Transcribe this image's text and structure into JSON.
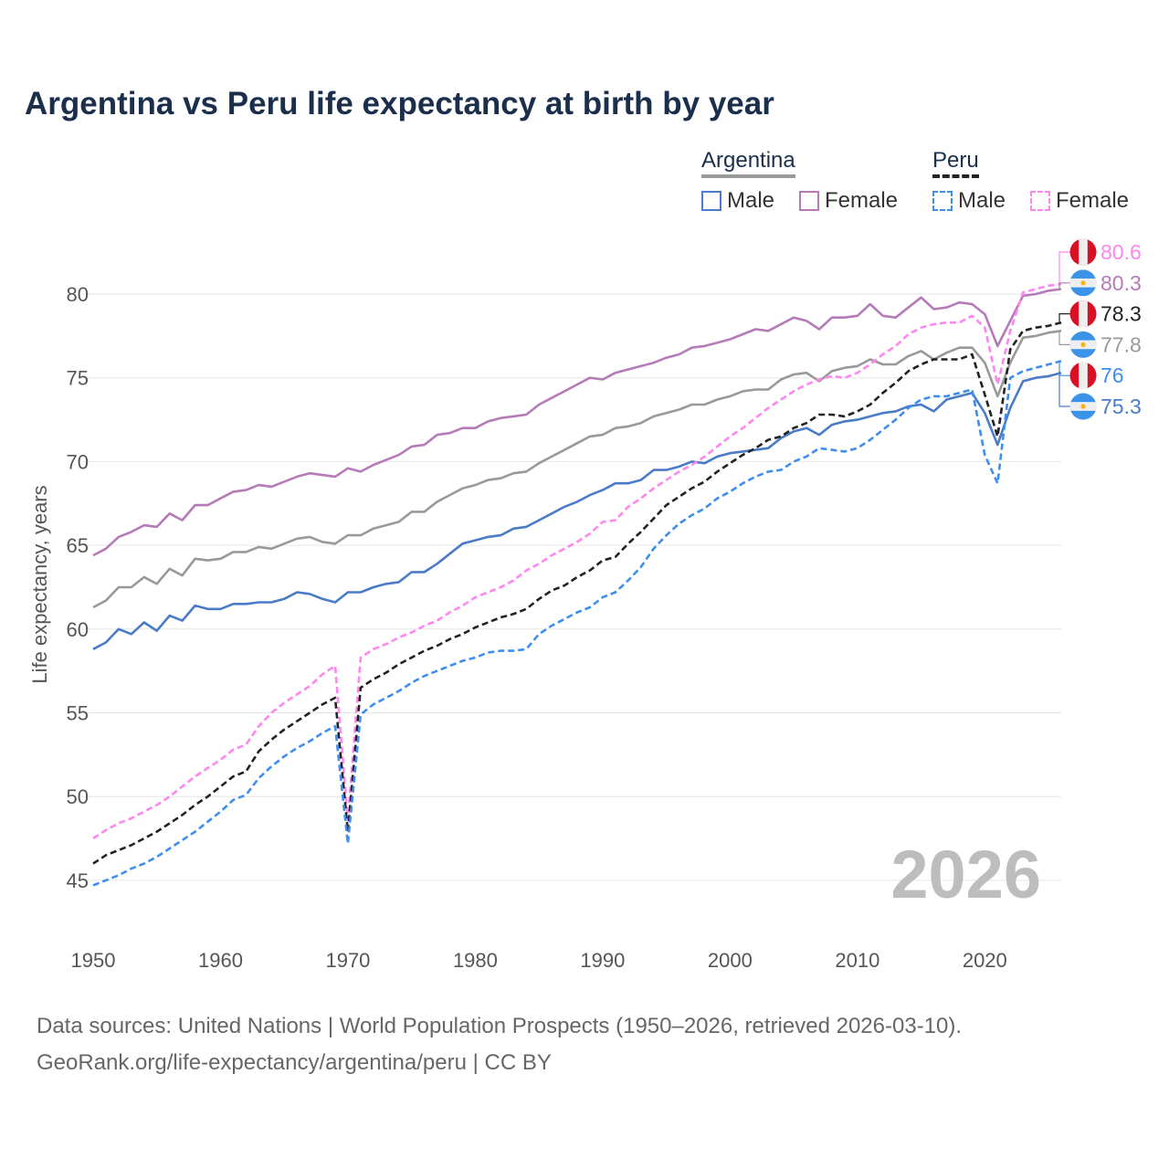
{
  "title": "Argentina vs Peru life expectancy at birth by year",
  "legend": {
    "groups": [
      {
        "country": "Argentina",
        "style": "solid",
        "color": "#999999",
        "items": [
          {
            "label": "Male",
            "color": "#4a7bc8"
          },
          {
            "label": "Female",
            "color": "#b57ab8"
          }
        ]
      },
      {
        "country": "Peru",
        "style": "dashed",
        "color": "#222222",
        "items": [
          {
            "label": "Male",
            "color": "#3d8ef0"
          },
          {
            "label": "Female",
            "color": "#ff85f0"
          }
        ]
      }
    ]
  },
  "year_watermark": "2026",
  "footer": {
    "line1": "Data sources: United Nations | World Population Prospects (1950–2026, retrieved 2026-03-10).",
    "line2": "GeoRank.org/life-expectancy/argentina/peru | CC BY"
  },
  "chart_data": {
    "type": "line",
    "title": "Argentina vs Peru life expectancy at birth by year",
    "xlabel": "",
    "ylabel": "Life expectancy, years",
    "xlim": [
      1950,
      2026
    ],
    "ylim": [
      43,
      83
    ],
    "xticks": [
      1950,
      1960,
      1970,
      1980,
      1990,
      2000,
      2010,
      2020
    ],
    "yticks": [
      45,
      50,
      55,
      60,
      65,
      70,
      75,
      80
    ],
    "grid": true,
    "legend_position": "top-right",
    "x_start": 1950,
    "series": [
      {
        "name": "Peru Female",
        "country": "Peru",
        "flag": "peru",
        "dashed": true,
        "color": "#ff85f0",
        "end_label": "80.6",
        "values": [
          47.5,
          48.0,
          48.4,
          48.7,
          49.1,
          49.5,
          50.0,
          50.6,
          51.2,
          51.7,
          52.2,
          52.8,
          53.1,
          54.2,
          55.0,
          55.6,
          56.1,
          56.6,
          57.3,
          57.8,
          48.6,
          58.3,
          58.8,
          59.1,
          59.5,
          59.8,
          60.2,
          60.5,
          61.0,
          61.4,
          61.9,
          62.2,
          62.5,
          62.9,
          63.5,
          63.9,
          64.4,
          64.8,
          65.2,
          65.7,
          66.4,
          66.5,
          67.3,
          67.8,
          68.4,
          68.9,
          69.4,
          69.8,
          70.3,
          70.9,
          71.5,
          72.0,
          72.6,
          73.2,
          73.7,
          74.2,
          74.6,
          74.9,
          75.1,
          75.0,
          75.3,
          75.8,
          76.4,
          76.9,
          77.6,
          78.0,
          78.2,
          78.3,
          78.3,
          78.7,
          78.0,
          74.6,
          77.8,
          80.1,
          80.3,
          80.5,
          80.6
        ]
      },
      {
        "name": "Argentina Female",
        "country": "Argentina",
        "flag": "argentina",
        "dashed": false,
        "color": "#b57ab8",
        "end_label": "80.3",
        "values": [
          64.4,
          64.8,
          65.5,
          65.8,
          66.2,
          66.1,
          66.9,
          66.5,
          67.4,
          67.4,
          67.8,
          68.2,
          68.3,
          68.6,
          68.5,
          68.8,
          69.1,
          69.3,
          69.2,
          69.1,
          69.6,
          69.4,
          69.8,
          70.1,
          70.4,
          70.9,
          71.0,
          71.6,
          71.7,
          72.0,
          72.0,
          72.4,
          72.6,
          72.7,
          72.8,
          73.4,
          73.8,
          74.2,
          74.6,
          75.0,
          74.9,
          75.3,
          75.5,
          75.7,
          75.9,
          76.2,
          76.4,
          76.8,
          76.9,
          77.1,
          77.3,
          77.6,
          77.9,
          77.8,
          78.2,
          78.6,
          78.4,
          77.9,
          78.6,
          78.6,
          78.7,
          79.4,
          78.7,
          78.6,
          79.2,
          79.8,
          79.1,
          79.2,
          79.5,
          79.4,
          78.8,
          76.9,
          78.4,
          79.9,
          80.0,
          80.2,
          80.3
        ]
      },
      {
        "name": "Peru",
        "country": "Peru",
        "flag": "peru",
        "dashed": true,
        "color": "#222222",
        "end_label": "78.3",
        "values": [
          46.0,
          46.5,
          46.8,
          47.1,
          47.5,
          47.9,
          48.4,
          48.9,
          49.5,
          50.0,
          50.6,
          51.2,
          51.5,
          52.7,
          53.4,
          54.0,
          54.5,
          55.0,
          55.5,
          55.9,
          47.9,
          56.5,
          57.0,
          57.4,
          57.9,
          58.3,
          58.7,
          59.0,
          59.4,
          59.7,
          60.1,
          60.4,
          60.7,
          60.9,
          61.2,
          61.8,
          62.3,
          62.6,
          63.1,
          63.5,
          64.1,
          64.3,
          65.1,
          65.8,
          66.6,
          67.4,
          67.9,
          68.4,
          68.8,
          69.4,
          69.9,
          70.4,
          70.8,
          71.3,
          71.5,
          72.0,
          72.3,
          72.8,
          72.8,
          72.7,
          73.0,
          73.4,
          74.1,
          74.7,
          75.4,
          75.8,
          76.1,
          76.1,
          76.1,
          76.4,
          74.0,
          71.5,
          76.7,
          77.8,
          78.0,
          78.1,
          78.3
        ]
      },
      {
        "name": "Argentina",
        "country": "Argentina",
        "flag": "argentina",
        "dashed": false,
        "color": "#999999",
        "end_label": "77.8",
        "values": [
          61.3,
          61.7,
          62.5,
          62.5,
          63.1,
          62.7,
          63.6,
          63.2,
          64.2,
          64.1,
          64.2,
          64.6,
          64.6,
          64.9,
          64.8,
          65.1,
          65.4,
          65.5,
          65.2,
          65.1,
          65.6,
          65.6,
          66.0,
          66.2,
          66.4,
          67.0,
          67.0,
          67.6,
          68.0,
          68.4,
          68.6,
          68.9,
          69.0,
          69.3,
          69.4,
          69.9,
          70.3,
          70.7,
          71.1,
          71.5,
          71.6,
          72.0,
          72.1,
          72.3,
          72.7,
          72.9,
          73.1,
          73.4,
          73.4,
          73.7,
          73.9,
          74.2,
          74.3,
          74.3,
          74.9,
          75.2,
          75.3,
          74.8,
          75.4,
          75.6,
          75.7,
          76.1,
          75.8,
          75.8,
          76.3,
          76.6,
          76.1,
          76.5,
          76.8,
          76.8,
          75.9,
          73.9,
          75.9,
          77.4,
          77.5,
          77.7,
          77.8
        ]
      },
      {
        "name": "Peru Male",
        "country": "Peru",
        "flag": "peru",
        "dashed": true,
        "color": "#3d8ef0",
        "end_label": "76",
        "values": [
          44.7,
          45.0,
          45.3,
          45.7,
          46.0,
          46.4,
          46.9,
          47.4,
          47.9,
          48.5,
          49.1,
          49.8,
          50.1,
          51.1,
          51.8,
          52.4,
          52.9,
          53.3,
          53.8,
          54.2,
          47.2,
          54.9,
          55.5,
          55.9,
          56.3,
          56.8,
          57.2,
          57.5,
          57.8,
          58.1,
          58.3,
          58.6,
          58.7,
          58.7,
          58.8,
          59.7,
          60.2,
          60.6,
          61.0,
          61.3,
          61.9,
          62.2,
          62.9,
          63.7,
          64.8,
          65.6,
          66.3,
          66.8,
          67.2,
          67.8,
          68.2,
          68.7,
          69.1,
          69.4,
          69.5,
          70.0,
          70.3,
          70.8,
          70.7,
          70.6,
          70.8,
          71.3,
          71.9,
          72.5,
          73.2,
          73.7,
          73.9,
          73.9,
          74.1,
          74.3,
          70.4,
          68.7,
          75.0,
          75.4,
          75.6,
          75.8,
          76.0
        ]
      },
      {
        "name": "Argentina Male",
        "country": "Argentina",
        "flag": "argentina",
        "dashed": false,
        "color": "#4a7bc8",
        "end_label": "75.3",
        "values": [
          58.8,
          59.2,
          60.0,
          59.7,
          60.4,
          59.9,
          60.8,
          60.5,
          61.4,
          61.2,
          61.2,
          61.5,
          61.5,
          61.6,
          61.6,
          61.8,
          62.2,
          62.1,
          61.8,
          61.6,
          62.2,
          62.2,
          62.5,
          62.7,
          62.8,
          63.4,
          63.4,
          63.9,
          64.5,
          65.1,
          65.3,
          65.5,
          65.6,
          66.0,
          66.1,
          66.5,
          66.9,
          67.3,
          67.6,
          68.0,
          68.3,
          68.7,
          68.7,
          68.9,
          69.5,
          69.5,
          69.7,
          70.0,
          69.9,
          70.3,
          70.5,
          70.6,
          70.7,
          70.8,
          71.4,
          71.8,
          72.0,
          71.6,
          72.2,
          72.4,
          72.5,
          72.7,
          72.9,
          73.0,
          73.3,
          73.4,
          73.0,
          73.7,
          73.9,
          74.1,
          72.9,
          71.0,
          73.2,
          74.8,
          75.0,
          75.1,
          75.3
        ]
      }
    ]
  }
}
